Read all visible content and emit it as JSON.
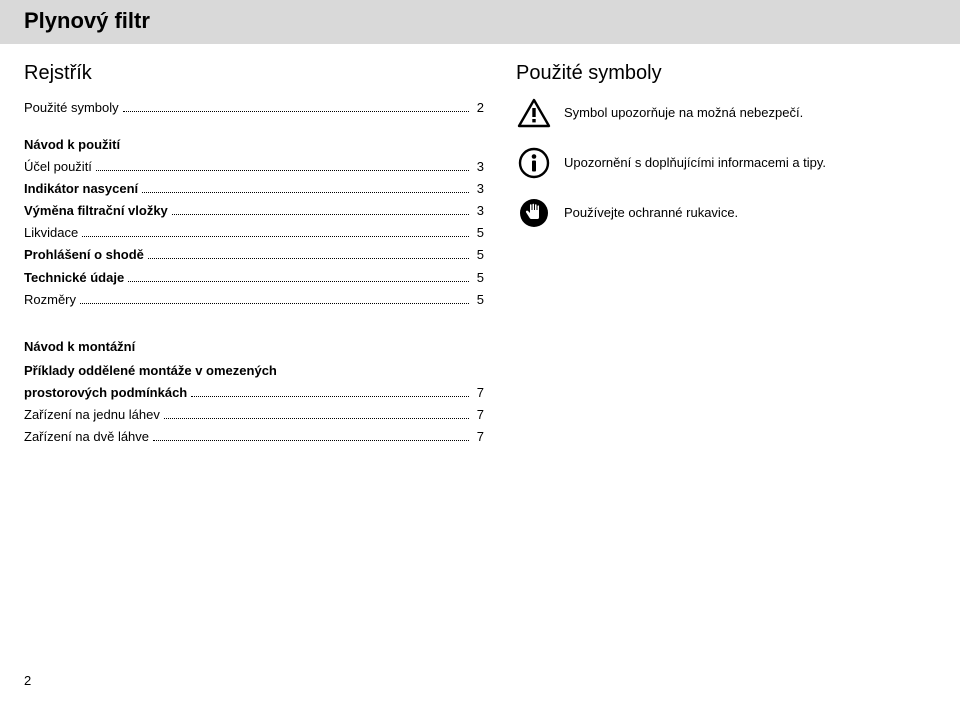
{
  "header": {
    "title": "Plynový filtr"
  },
  "left": {
    "index_title": "Rejstřík",
    "index_lines": [
      {
        "label": "Použité symboly",
        "page": "2",
        "bold": false
      }
    ],
    "usage_heading": "Návod k použití",
    "usage_lines": [
      {
        "label": "Účel použití",
        "page": "3",
        "bold": false
      },
      {
        "label": "Indikátor nasycení",
        "page": "3",
        "bold": true
      },
      {
        "label": "Výměna filtrační vložky",
        "page": "3",
        "bold": true
      },
      {
        "label": "Likvidace",
        "page": "5",
        "bold": false
      },
      {
        "label": "Prohlášení o shodě",
        "page": "5",
        "bold": true
      },
      {
        "label": "Technické údaje",
        "page": "5",
        "bold": true
      },
      {
        "label": "Rozměry",
        "page": "5",
        "bold": false
      }
    ],
    "mount_heading": "Návod k montážní",
    "mount_lines_multi": {
      "label_line1": "Příklady oddělené montáže v omezených",
      "label_line2": "prostorových podmínkách",
      "page": "7"
    },
    "mount_lines": [
      {
        "label": "Zařízení na jednu láhev",
        "page": "7",
        "bold": false
      },
      {
        "label": "Zařízení na dvě láhve",
        "page": "7",
        "bold": false
      }
    ]
  },
  "right": {
    "title": "Použité symboly",
    "rows": [
      {
        "icon": "warning",
        "text": "Symbol upozorňuje na možná nebezpečí."
      },
      {
        "icon": "info",
        "text": "Upozornění s doplňujícími informacemi a tipy."
      },
      {
        "icon": "glove",
        "text": "Používejte ochranné rukavice."
      }
    ]
  },
  "colors": {
    "header_bg": "#d9d9d9",
    "text": "#000000",
    "icon_fill": "#000000",
    "page_bg": "#ffffff"
  },
  "page_number": "2"
}
